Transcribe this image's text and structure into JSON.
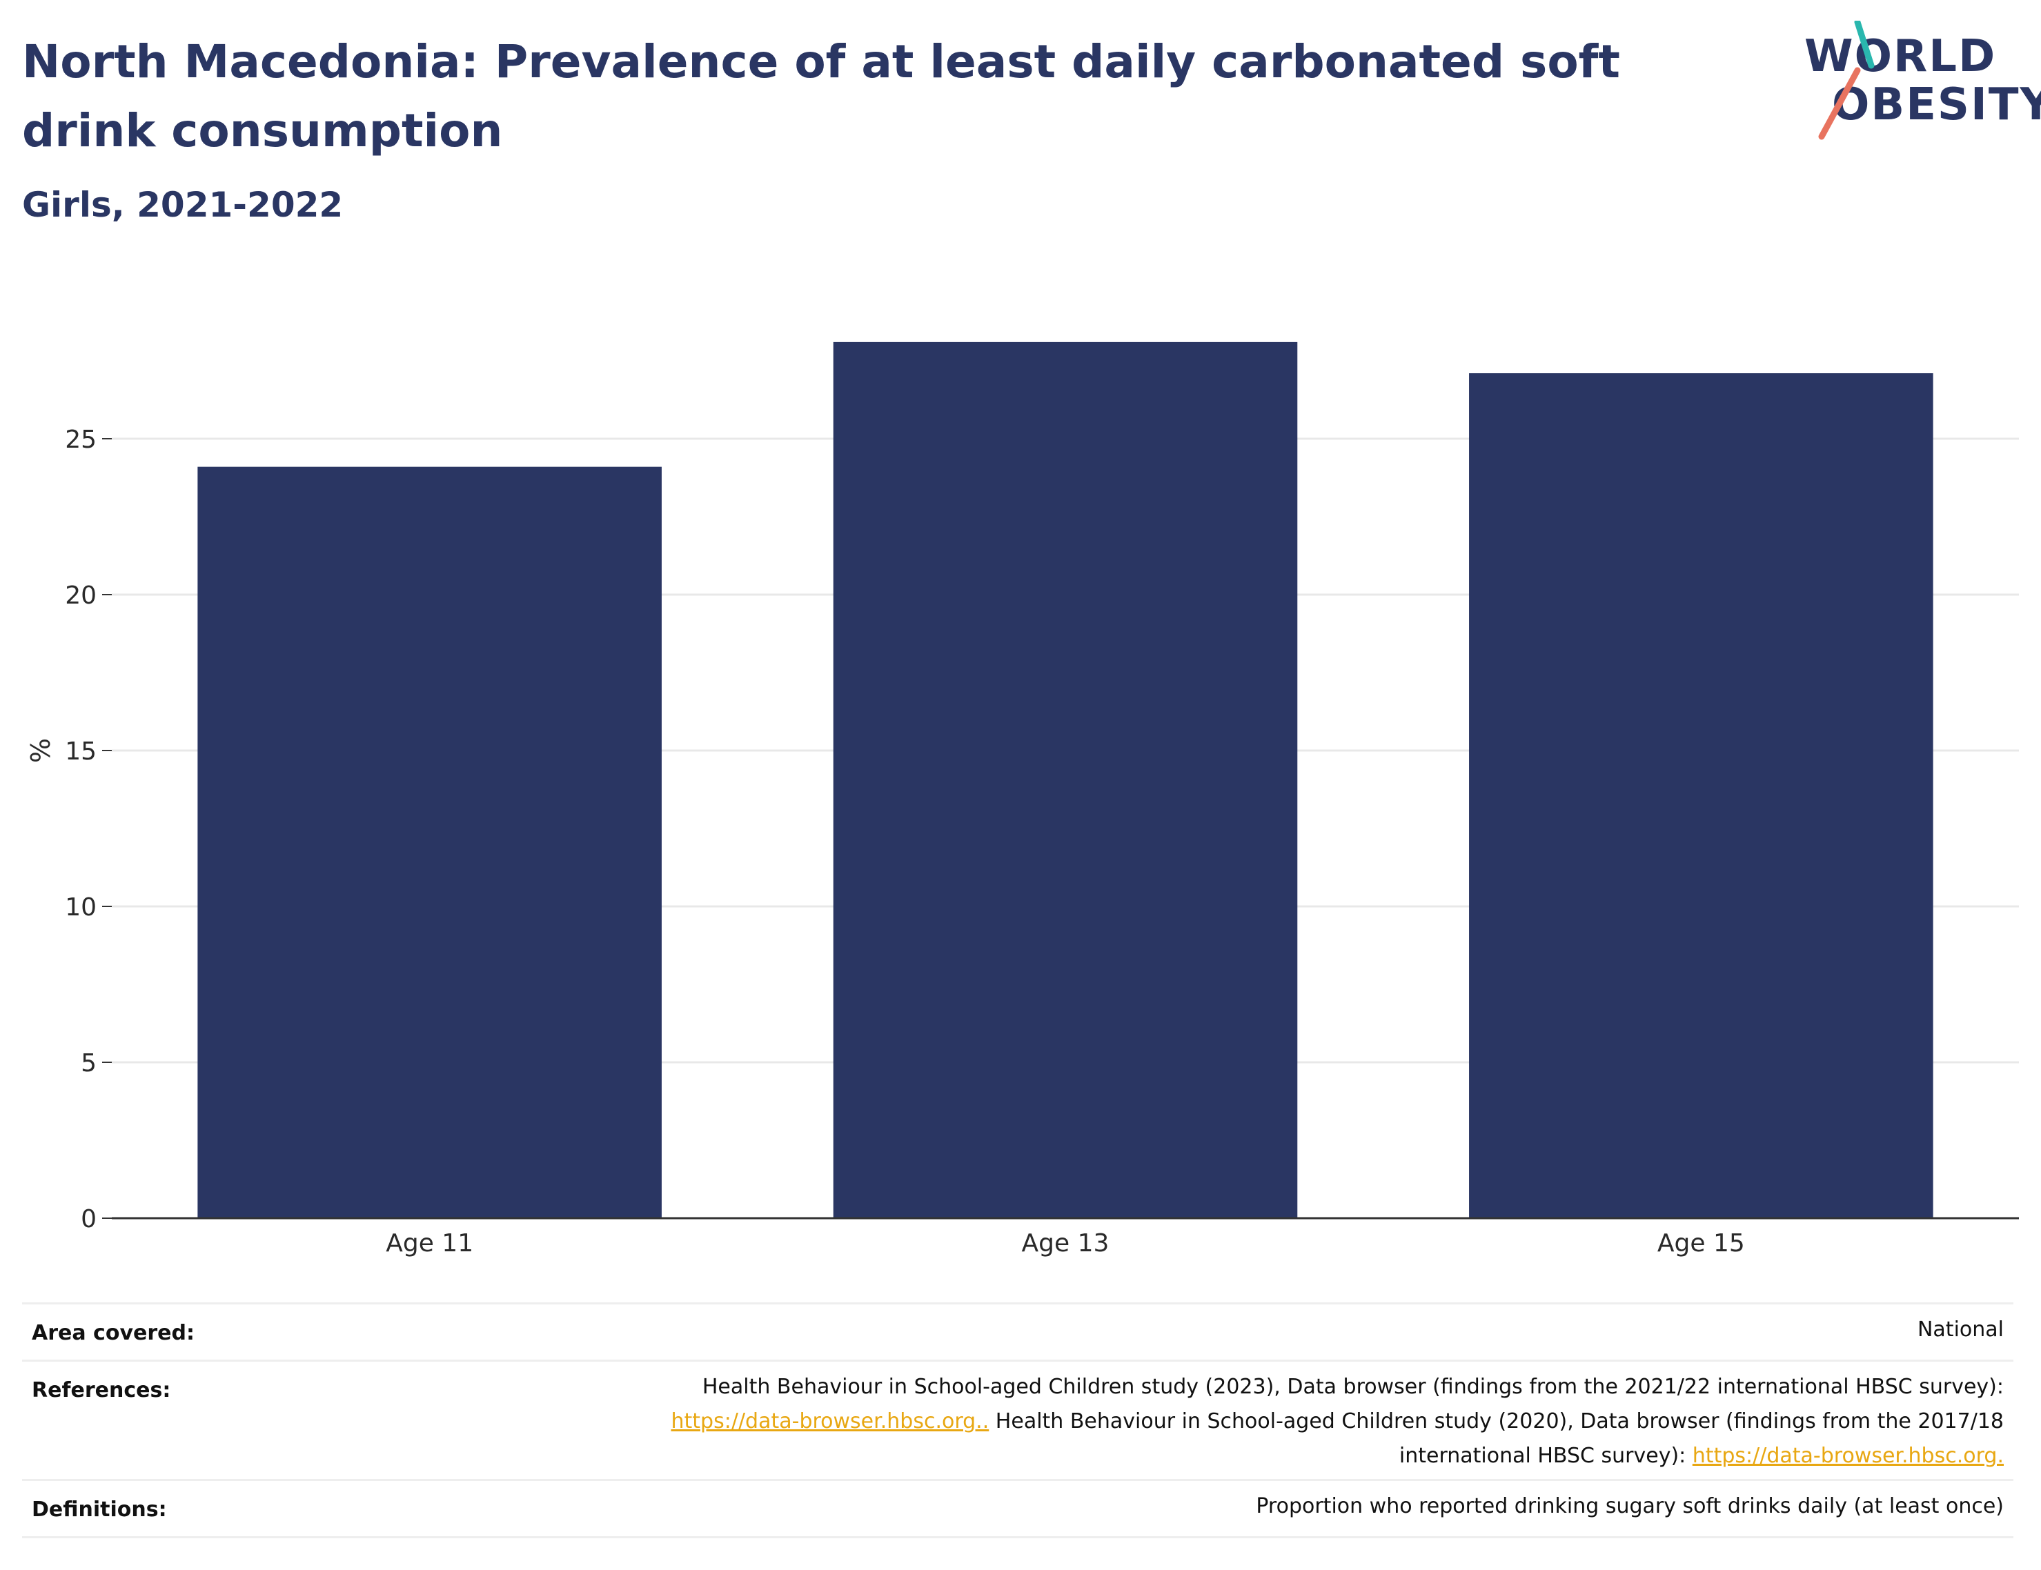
{
  "header": {
    "title": "North Macedonia: Prevalence of at least daily carbonated soft drink consumption",
    "subtitle": "Girls, 2021-2022"
  },
  "logo": {
    "line1": "WORLD",
    "line2": "OBESITY"
  },
  "colors": {
    "bar": "#2a3663",
    "grid": "#e8e8e8",
    "axis": "#333333",
    "link": "#e8a712",
    "logo_teal": "#2ab7ae",
    "logo_coral": "#e8735f"
  },
  "chart_data": {
    "type": "bar",
    "categories": [
      "Age 11",
      "Age 13",
      "Age 15"
    ],
    "values": [
      24.1,
      28.1,
      27.1
    ],
    "xlabel": "",
    "ylabel": "%",
    "ylim": [
      0,
      30
    ],
    "yticks": [
      0,
      5,
      10,
      15,
      20,
      25
    ],
    "grid": true
  },
  "metadata": {
    "area_label": "Area covered:",
    "area_value": "National",
    "references_label": "References:",
    "references_line1": "Health Behaviour in School-aged Children study (2023), Data browser (findings from the 2021/22 international HBSC survey):",
    "references_link1": "https://data-browser.hbsc.org..",
    "references_line2_tail": " Health Behaviour in School-aged Children study (2020), Data browser (findings from the 2017/18",
    "references_line3": "international HBSC survey): ",
    "references_link2": "https://data-browser.hbsc.org.",
    "definitions_label": "Definitions:",
    "definitions_value": "Proportion who reported drinking sugary soft drinks daily (at least once)"
  }
}
